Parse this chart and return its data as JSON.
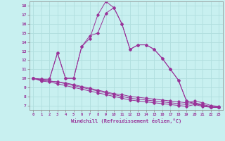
{
  "xlabel": "Windchill (Refroidissement éolien,°C)",
  "background_color": "#c8f0f0",
  "grid_color": "#b0dede",
  "line_color": "#993399",
  "xlim": [
    -0.5,
    23.5
  ],
  "ylim": [
    6.5,
    18.5
  ],
  "xticks": [
    0,
    1,
    2,
    3,
    4,
    5,
    6,
    7,
    8,
    9,
    10,
    11,
    12,
    13,
    14,
    15,
    16,
    17,
    18,
    19,
    20,
    21,
    22,
    23
  ],
  "yticks": [
    7,
    8,
    9,
    10,
    11,
    12,
    13,
    14,
    15,
    16,
    17,
    18
  ],
  "line1": [
    10.0,
    9.9,
    9.9,
    12.8,
    10.0,
    10.0,
    13.5,
    14.4,
    17.0,
    18.5,
    17.8,
    16.0,
    13.2,
    13.7,
    13.7,
    13.2,
    12.2,
    11.0,
    9.8,
    7.5,
    7.2,
    7.0,
    6.8,
    6.8
  ],
  "line2": [
    10.0,
    9.9,
    9.9,
    12.8,
    10.0,
    10.0,
    13.5,
    14.7,
    15.0,
    17.2,
    17.8,
    16.0,
    13.2,
    13.7,
    13.7,
    13.2,
    12.2,
    11.0,
    9.8,
    7.5,
    7.2,
    7.0,
    6.8,
    6.8
  ],
  "line3": [
    10.0,
    9.8,
    9.7,
    9.6,
    9.5,
    9.3,
    9.1,
    8.9,
    8.7,
    8.5,
    8.3,
    8.2,
    8.0,
    7.9,
    7.8,
    7.7,
    7.6,
    7.5,
    7.4,
    7.3,
    7.5,
    7.3,
    7.0,
    6.9
  ],
  "line4": [
    10.0,
    9.8,
    9.7,
    9.6,
    9.4,
    9.2,
    9.0,
    8.8,
    8.6,
    8.4,
    8.2,
    8.0,
    7.8,
    7.7,
    7.6,
    7.5,
    7.4,
    7.3,
    7.2,
    7.1,
    7.3,
    7.1,
    6.9,
    6.8
  ],
  "line5": [
    10.0,
    9.7,
    9.6,
    9.4,
    9.2,
    9.0,
    8.8,
    8.6,
    8.4,
    8.2,
    8.0,
    7.8,
    7.6,
    7.5,
    7.4,
    7.3,
    7.2,
    7.1,
    7.0,
    6.9,
    7.1,
    6.9,
    6.8,
    6.8
  ]
}
